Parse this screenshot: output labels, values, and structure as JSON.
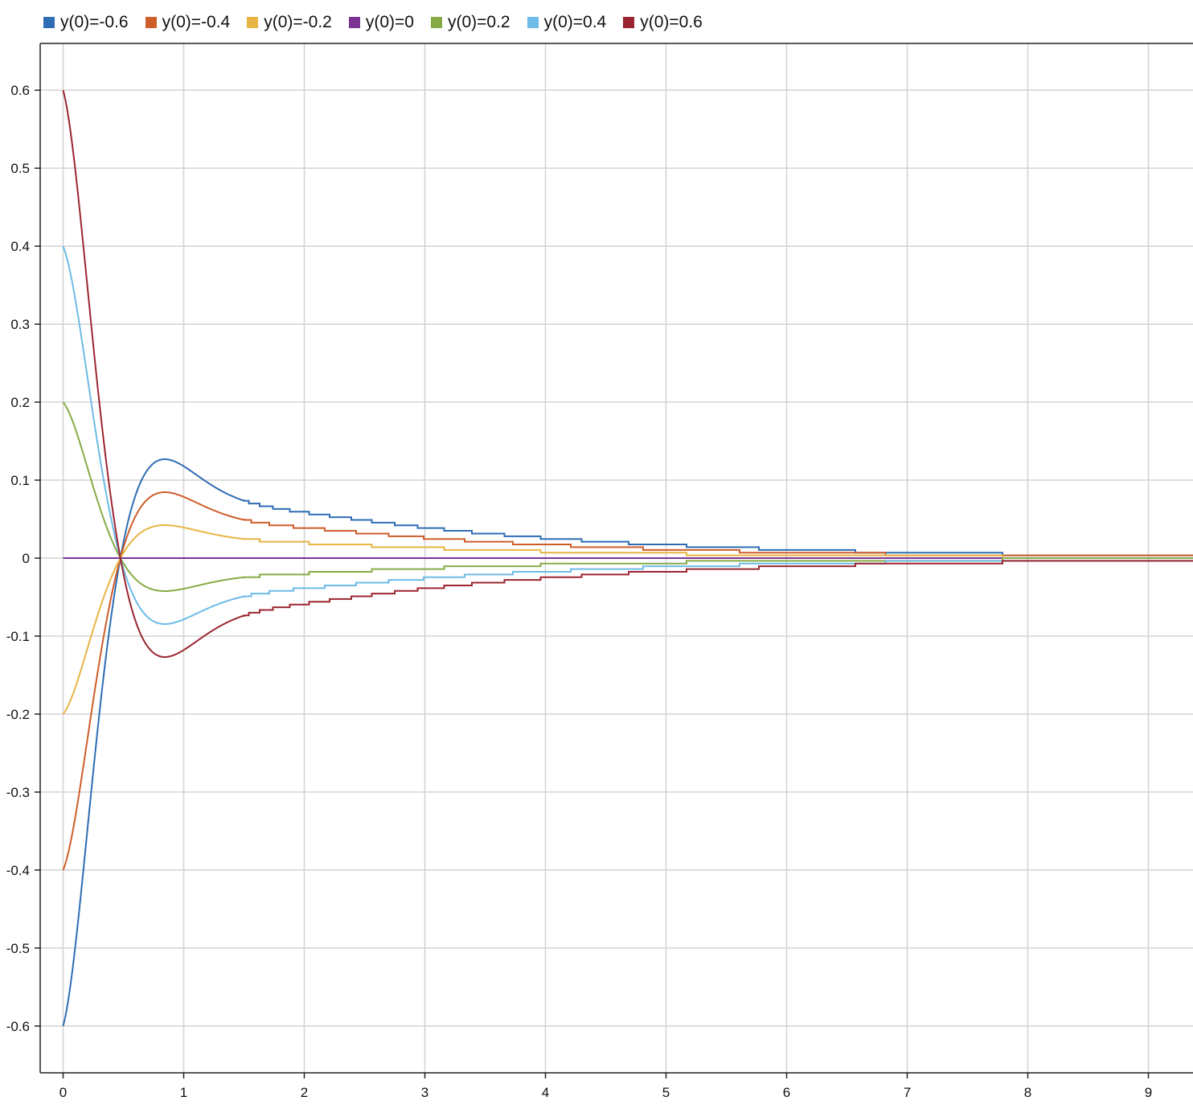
{
  "chart_data": {
    "type": "line",
    "title": "",
    "xlabel": "",
    "ylabel": "",
    "xlim": [
      -0.19,
      9.37
    ],
    "ylim": [
      -0.66,
      0.66
    ],
    "x_ticks": [
      0,
      1,
      2,
      3,
      4,
      5,
      6,
      7,
      8,
      9
    ],
    "y_ticks": [
      0.6,
      0.5,
      0.4,
      0.3,
      0.2,
      0.1,
      0,
      -0.1,
      -0.2,
      -0.3,
      -0.4,
      -0.5,
      -0.6
    ],
    "grid": true,
    "legend_position": "top-left",
    "series": [
      {
        "name": "y(0)=-0.6",
        "color": "#2e6db4",
        "y0": -0.6
      },
      {
        "name": "y(0)=-0.4",
        "color": "#cf5d2b",
        "y0": -0.4
      },
      {
        "name": "y(0)=-0.2",
        "color": "#e8b544",
        "y0": -0.2
      },
      {
        "name": "y(0)=0",
        "color": "#7b3394",
        "y0": 0
      },
      {
        "name": "y(0)=0.2",
        "color": "#86ab45",
        "y0": 0.2
      },
      {
        "name": "y(0)=0.4",
        "color": "#6dbbe6",
        "y0": 0.4
      },
      {
        "name": "y(0)=0.6",
        "color": "#9b2631",
        "y0": 0.6
      }
    ]
  }
}
